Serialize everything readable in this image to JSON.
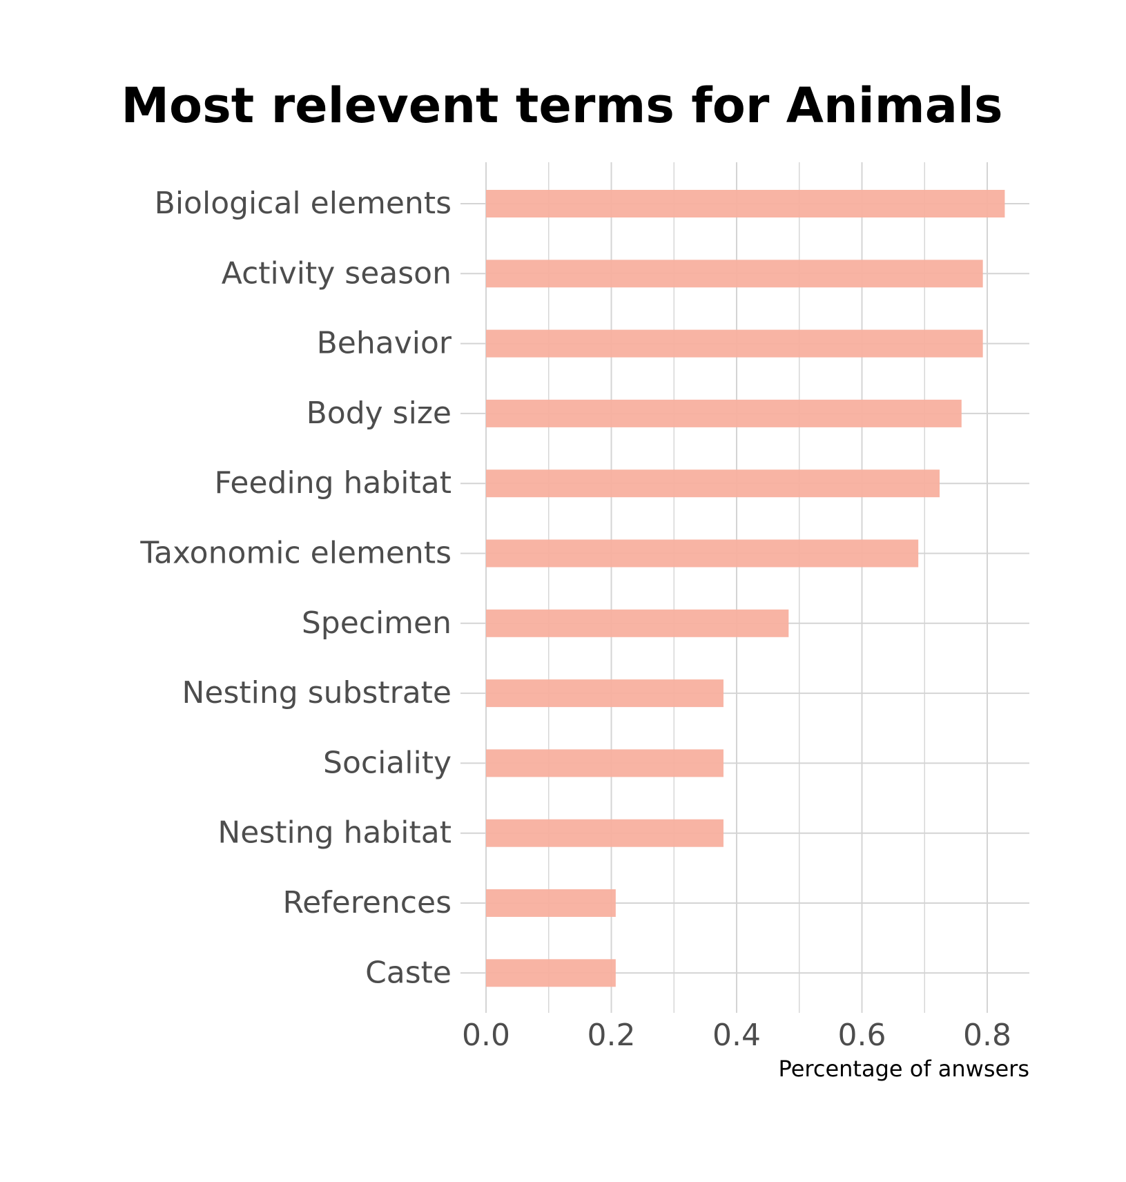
{
  "chart_data": {
    "type": "bar",
    "orientation": "horizontal",
    "title": "Most relevent terms for Animals",
    "xlabel": "Percentage of anwsers",
    "ylabel": "",
    "categories": [
      "Biological elements",
      "Activity season",
      "Behavior",
      "Body size",
      "Feeding habitat",
      "Taxonomic elements",
      "Specimen",
      "Nesting substrate",
      "Sociality",
      "Nesting habitat",
      "References",
      "Caste"
    ],
    "values": [
      0.828,
      0.793,
      0.793,
      0.759,
      0.724,
      0.69,
      0.483,
      0.379,
      0.379,
      0.379,
      0.207,
      0.207
    ],
    "xlim": [
      0,
      0.87
    ],
    "xticks": [
      0.0,
      0.2,
      0.4,
      0.6,
      0.8
    ],
    "xtick_labels": [
      "0.0",
      "0.2",
      "0.4",
      "0.6",
      "0.8"
    ],
    "grid": true,
    "legend": "none",
    "bar_color": "#f8b09f",
    "grid_color": "#d4d4d4",
    "title_color": "#000000",
    "label_color": "#4d4d4d"
  }
}
